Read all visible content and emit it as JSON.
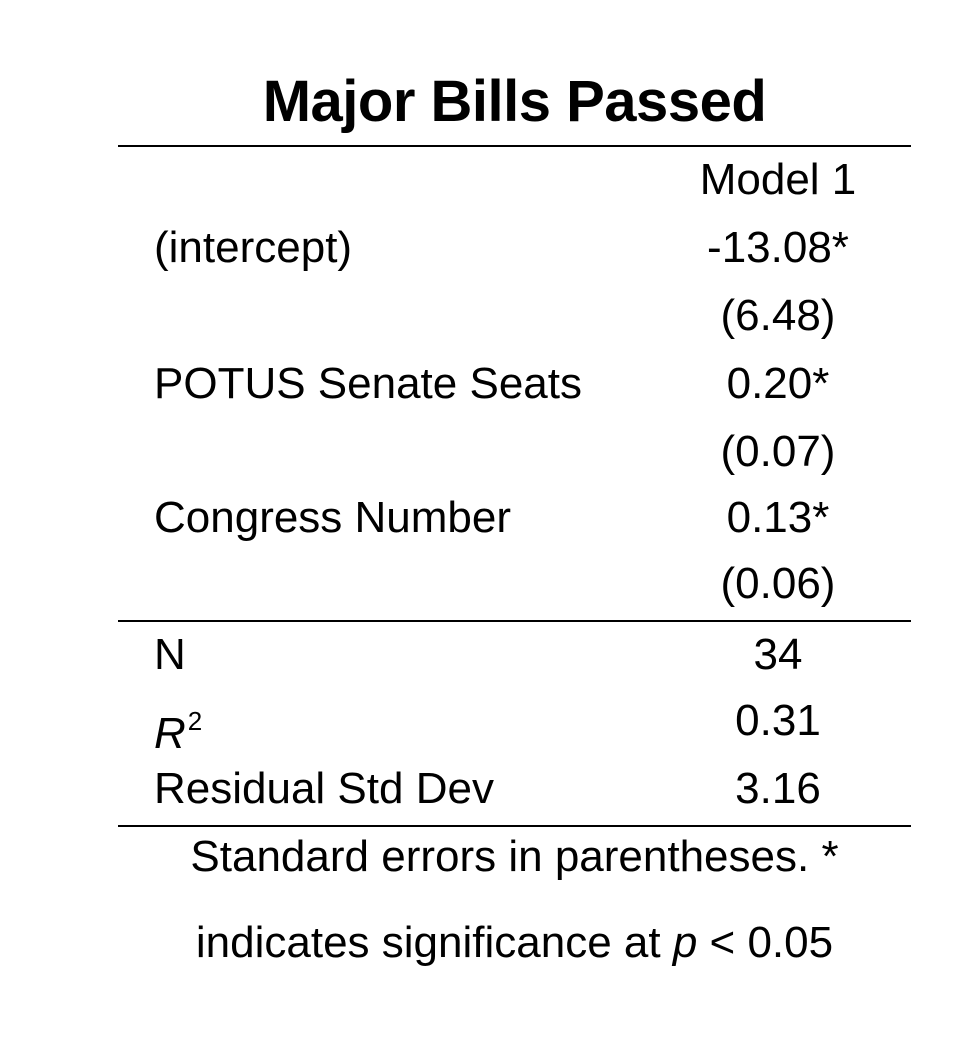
{
  "table": {
    "title": "Major Bills Passed",
    "model_header": "Model 1",
    "coefficients": [
      {
        "label": "(intercept)",
        "estimate": "-13.08*",
        "se": "(6.48)"
      },
      {
        "label": "POTUS Senate Seats",
        "estimate": "0.20*",
        "se": "(0.07)"
      },
      {
        "label": "Congress Number",
        "estimate": "0.13*",
        "se": "(0.06)"
      }
    ],
    "stats": [
      {
        "label": "N",
        "value": "34"
      },
      {
        "label": "R",
        "value": "0.31"
      },
      {
        "label": "Residual Std Dev",
        "value": "3.16"
      }
    ],
    "r_squared_superscript": "2",
    "note_line1": "Standard errors in parentheses. *",
    "note_line2_prefix": "indicates significance at ",
    "note_p": "p",
    "note_line2_suffix": " < 0.05"
  }
}
